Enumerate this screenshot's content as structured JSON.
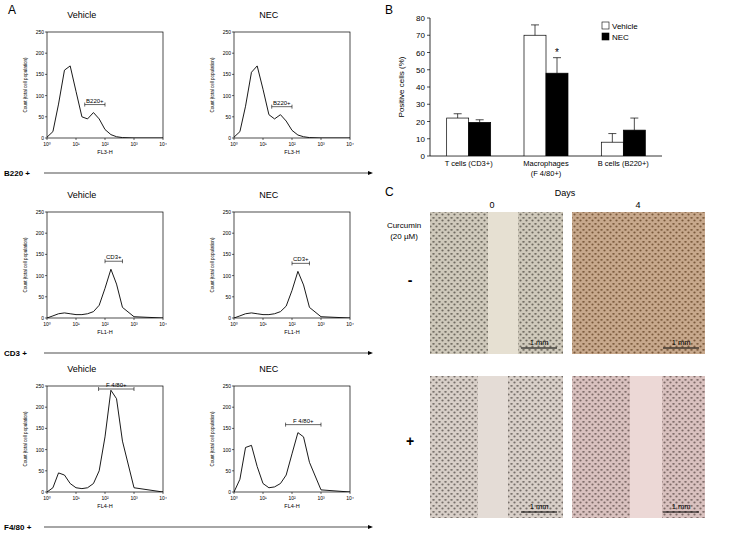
{
  "chart_data": [
    {
      "type": "line",
      "title": "Vehicle",
      "xlabel": "FL3-H",
      "ylabel": "Count (total cell population)",
      "color": "#000000",
      "log": "x",
      "x": [
        1,
        1.6,
        2.5,
        4,
        6.3,
        10,
        16,
        25,
        40,
        63,
        100,
        160,
        250,
        400,
        1000,
        10000
      ],
      "values": [
        2,
        15,
        80,
        160,
        170,
        110,
        50,
        45,
        60,
        45,
        20,
        8,
        3,
        1,
        0,
        0
      ],
      "xlim": [
        1,
        10000
      ],
      "xticks": [
        {
          "value": 1,
          "label": "10⁰"
        },
        {
          "value": 10,
          "label": "10¹"
        },
        {
          "value": 100,
          "label": "10²"
        },
        {
          "value": 1000,
          "label": "10³"
        },
        {
          "value": 10000,
          "label": "10⁴"
        }
      ],
      "ylim": [
        0,
        250
      ],
      "yticks": [
        0,
        50,
        100,
        150,
        200,
        250
      ],
      "gate": {
        "label": "B220+",
        "range": [
          20,
          100
        ]
      }
    },
    {
      "type": "line",
      "title": "NEC",
      "xlabel": "FL3-H",
      "ylabel": "Count (total cell population)",
      "color": "#000000",
      "log": "x",
      "x": [
        1,
        1.6,
        2.5,
        4,
        6.3,
        10,
        16,
        25,
        40,
        63,
        100,
        160,
        250,
        400,
        1000,
        10000
      ],
      "values": [
        2,
        15,
        75,
        155,
        170,
        115,
        55,
        45,
        55,
        40,
        18,
        7,
        3,
        1,
        0,
        0
      ],
      "xlim": [
        1,
        10000
      ],
      "xticks": [
        {
          "value": 1,
          "label": "10⁰"
        },
        {
          "value": 10,
          "label": "10¹"
        },
        {
          "value": 100,
          "label": "10²"
        },
        {
          "value": 1000,
          "label": "10³"
        },
        {
          "value": 10000,
          "label": "10⁴"
        }
      ],
      "ylim": [
        0,
        250
      ],
      "yticks": [
        0,
        50,
        100,
        150,
        200,
        250
      ],
      "gate": {
        "label": "B220+",
        "range": [
          20,
          100
        ]
      }
    },
    {
      "type": "line",
      "title": "Vehicle",
      "xlabel": "FL1-H",
      "ylabel": "Count (total cell population)",
      "color": "#000000",
      "log": "x",
      "x": [
        1,
        1.6,
        2.5,
        4,
        6.3,
        10,
        16,
        25,
        40,
        63,
        100,
        160,
        250,
        400,
        1000,
        10000
      ],
      "values": [
        0,
        5,
        10,
        12,
        10,
        8,
        8,
        10,
        15,
        30,
        70,
        115,
        80,
        25,
        3,
        0
      ],
      "xlim": [
        1,
        10000
      ],
      "xticks": [
        {
          "value": 1,
          "label": "10⁰"
        },
        {
          "value": 10,
          "label": "10¹"
        },
        {
          "value": 100,
          "label": "10²"
        },
        {
          "value": 1000,
          "label": "10³"
        },
        {
          "value": 10000,
          "label": "10⁴"
        }
      ],
      "ylim": [
        0,
        250
      ],
      "yticks": [
        0,
        50,
        100,
        150,
        200,
        250
      ],
      "gate": {
        "label": "CD3+",
        "range": [
          100,
          400
        ]
      }
    },
    {
      "type": "line",
      "title": "NEC",
      "xlabel": "FL1-H",
      "ylabel": "Count (total cell population)",
      "color": "#000000",
      "log": "x",
      "x": [
        1,
        1.6,
        2.5,
        4,
        6.3,
        10,
        16,
        25,
        40,
        63,
        100,
        160,
        250,
        400,
        1000,
        10000
      ],
      "values": [
        0,
        5,
        10,
        12,
        10,
        8,
        8,
        10,
        15,
        28,
        65,
        110,
        78,
        25,
        3,
        0
      ],
      "xlim": [
        1,
        10000
      ],
      "xticks": [
        {
          "value": 1,
          "label": "10⁰"
        },
        {
          "value": 10,
          "label": "10¹"
        },
        {
          "value": 100,
          "label": "10²"
        },
        {
          "value": 1000,
          "label": "10³"
        },
        {
          "value": 10000,
          "label": "10⁴"
        }
      ],
      "ylim": [
        0,
        250
      ],
      "yticks": [
        0,
        50,
        100,
        150,
        200,
        250
      ],
      "gate": {
        "label": "CD3+",
        "range": [
          100,
          400
        ]
      }
    },
    {
      "type": "line",
      "title": "Vehicle",
      "xlabel": "FL4-H",
      "ylabel": "Count (total cell population)",
      "color": "#000000",
      "log": "x",
      "x": [
        1,
        1.6,
        2.5,
        4,
        6.3,
        10,
        16,
        25,
        40,
        63,
        100,
        160,
        250,
        400,
        1000,
        10000
      ],
      "values": [
        0,
        10,
        45,
        40,
        20,
        10,
        8,
        10,
        20,
        50,
        130,
        240,
        220,
        120,
        10,
        0
      ],
      "xlim": [
        1,
        10000
      ],
      "xticks": [
        {
          "value": 1,
          "label": "10⁰"
        },
        {
          "value": 10,
          "label": "10¹"
        },
        {
          "value": 100,
          "label": "10²"
        },
        {
          "value": 1000,
          "label": "10³"
        },
        {
          "value": 10000,
          "label": "10⁴"
        }
      ],
      "ylim": [
        0,
        250
      ],
      "yticks": [
        0,
        50,
        100,
        150,
        200,
        250
      ],
      "gate": {
        "label": "F 4/80+",
        "range": [
          60,
          1000
        ]
      }
    },
    {
      "type": "line",
      "title": "NEC",
      "xlabel": "FL4-H",
      "ylabel": "Count (total cell population)",
      "color": "#000000",
      "log": "x",
      "x": [
        1,
        1.6,
        2.5,
        4,
        6.3,
        10,
        16,
        25,
        40,
        63,
        100,
        160,
        250,
        400,
        1000,
        10000
      ],
      "values": [
        0,
        30,
        105,
        110,
        60,
        20,
        10,
        12,
        20,
        40,
        90,
        140,
        130,
        70,
        5,
        0
      ],
      "xlim": [
        1,
        10000
      ],
      "xticks": [
        {
          "value": 1,
          "label": "10⁰"
        },
        {
          "value": 10,
          "label": "10¹"
        },
        {
          "value": 100,
          "label": "10²"
        },
        {
          "value": 1000,
          "label": "10³"
        },
        {
          "value": 10000,
          "label": "10⁴"
        }
      ],
      "ylim": [
        0,
        250
      ],
      "yticks": [
        0,
        50,
        100,
        150,
        200,
        250
      ],
      "gate": {
        "label": "F 4/80+",
        "range": [
          60,
          1000
        ]
      }
    },
    {
      "type": "bar",
      "ylabel": "Positive cells (%)",
      "categories": [
        "T cells (CD3+)",
        "Macrophages\n(F 4/80+)",
        "B cells (B220+)"
      ],
      "series": [
        {
          "name": "Vehicle",
          "color": "#ffffff",
          "values": [
            22,
            70,
            8
          ],
          "errors": [
            2.5,
            6,
            5
          ]
        },
        {
          "name": "NEC",
          "color": "#000000",
          "values": [
            19.5,
            48,
            15
          ],
          "errors": [
            1.5,
            9,
            7
          ]
        }
      ],
      "ylim": [
        0,
        80
      ],
      "yticks": [
        0,
        10,
        20,
        30,
        40,
        50,
        60,
        70,
        80
      ],
      "legend": "top-right",
      "annotations": [
        {
          "text": "*",
          "category": 1,
          "series": 1
        }
      ]
    }
  ],
  "figure": {
    "panels": [
      "A",
      "B",
      "C"
    ],
    "row_labels": [
      "B220 +",
      "CD3 +",
      "F4/80 +"
    ],
    "image_panel": {
      "header": "Days",
      "columns": [
        "0",
        "4"
      ],
      "row_title": [
        "Curcumin",
        "(20 µM)"
      ],
      "rows": [
        "-",
        "+"
      ],
      "scale_bar": "1 mm"
    }
  }
}
